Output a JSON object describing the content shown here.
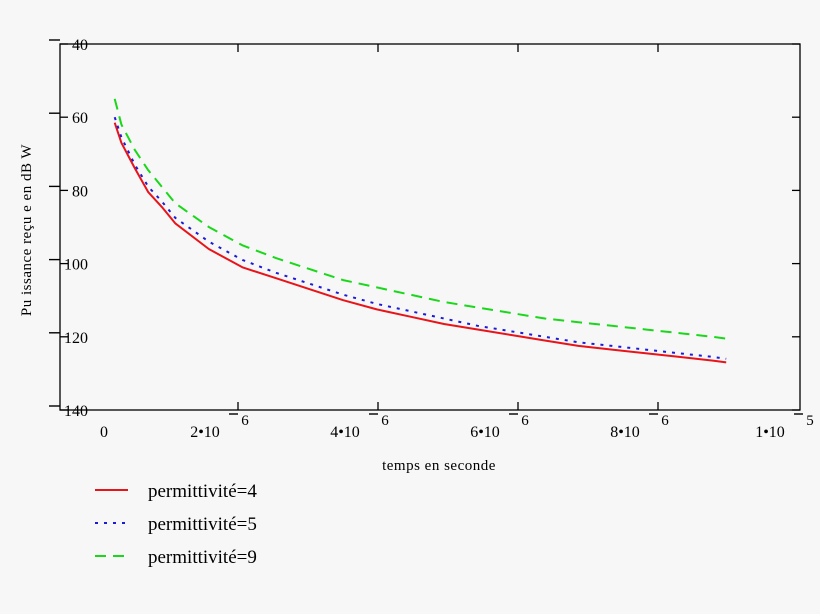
{
  "chart_data": {
    "type": "line",
    "xlabel": "temps en seconde",
    "ylabel": "Pu issance reçu e en dB W",
    "xlim": [
      0,
      1e-05
    ],
    "ylim": [
      -140,
      -40
    ],
    "y_ticks": [
      -40,
      -60,
      -80,
      -100,
      -120,
      -140
    ],
    "y_tick_labels": [
      "40",
      "60",
      "80",
      "100",
      "120",
      "140"
    ],
    "x_ticks": [
      {
        "value": 0,
        "mantissa": "0",
        "exponent": ""
      },
      {
        "value": 2e-06,
        "mantissa": "2•10",
        "exponent": "6"
      },
      {
        "value": 4e-06,
        "mantissa": "4•10",
        "exponent": "6"
      },
      {
        "value": 6e-06,
        "mantissa": "6•10",
        "exponent": "6"
      },
      {
        "value": 8e-06,
        "mantissa": "8•10",
        "exponent": "6"
      },
      {
        "value": 1e-05,
        "mantissa": "1•10",
        "exponent": "5"
      }
    ],
    "grid": false,
    "legend_position": "bottom-left",
    "x": [
      1e-07,
      2e-07,
      4e-07,
      6e-07,
      8e-07,
      1e-06,
      1.5e-06,
      2e-06,
      2.5e-06,
      3e-06,
      3.5e-06,
      4e-06,
      4.5e-06,
      5e-06,
      5.5e-06,
      6e-06,
      6.5e-06,
      7e-06,
      7.5e-06,
      8e-06,
      8.5e-06,
      9e-06,
      9.2e-06
    ],
    "series": [
      {
        "name": "permittivité=4",
        "color": "#e8141a",
        "dash": "solid",
        "values": [
          -61.5,
          -67,
          -74,
          -80.5,
          -84.5,
          -89,
          -96,
          -101,
          -104,
          -107,
          -110,
          -112.5,
          -114.5,
          -116.5,
          -118,
          -119.5,
          -121,
          -122.5,
          -123.5,
          -124.5,
          -125.5,
          -126.5,
          -127
        ]
      },
      {
        "name": "permittivité=5",
        "color": "#1a1ad8",
        "dash": "dotted",
        "values": [
          -60,
          -65.5,
          -73,
          -79,
          -83,
          -87.5,
          -94,
          -99,
          -102.5,
          -105.5,
          -108.5,
          -111,
          -113,
          -115,
          -117,
          -118.5,
          -120,
          -121.5,
          -122.5,
          -123.5,
          -124.5,
          -125.5,
          -126
        ]
      },
      {
        "name": "permittivité=9",
        "color": "#19d819",
        "dash": "dashed",
        "values": [
          -55,
          -62,
          -69,
          -74.5,
          -79,
          -83.5,
          -90,
          -95,
          -98.5,
          -101.5,
          -104.5,
          -106.5,
          -108.5,
          -110.5,
          -112,
          -113.5,
          -115,
          -116,
          -117,
          -118,
          -119,
          -120,
          -120.5
        ]
      }
    ]
  }
}
